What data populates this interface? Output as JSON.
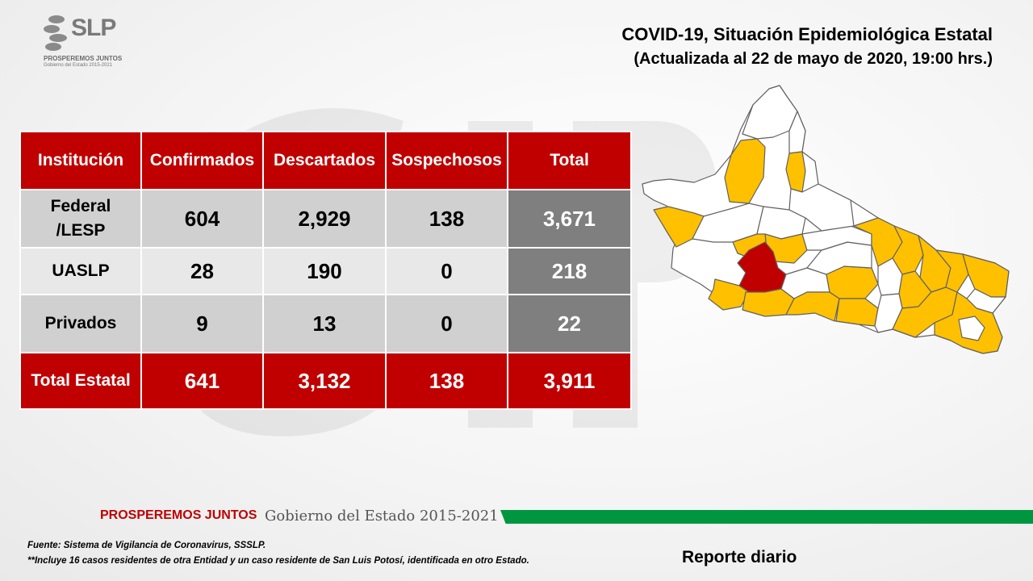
{
  "logo": {
    "brand": "SLP",
    "line1": "PROSPEREMOS JUNTOS",
    "line2": "Gobierno del Estado 2015-2021"
  },
  "header": {
    "title": "COVID-19, Situación Epidemiológica Estatal",
    "subtitle": "(Actualizada al 22 de mayo de 2020, 19:00 hrs.)"
  },
  "table": {
    "headers": [
      "Institución",
      "Confirmados",
      "Descartados",
      "Sospechosos",
      "Total"
    ],
    "rows": [
      {
        "institucion": "Federal\n/LESP",
        "confirmados": "604",
        "descartados": "2,929",
        "sospechosos": "138",
        "total": "3,671"
      },
      {
        "institucion": "UASLP",
        "confirmados": "28",
        "descartados": "190",
        "sospechosos": "0",
        "total": "218"
      },
      {
        "institucion": "Privados",
        "confirmados": "9",
        "descartados": "13",
        "sospechosos": "0",
        "total": "22"
      }
    ],
    "total_row": {
      "institucion": "Total Estatal",
      "confirmados": "641",
      "descartados": "3,132",
      "sospechosos": "138",
      "total": "3,911"
    }
  },
  "map": {
    "colors": {
      "no_cases": "#ffffff",
      "with_cases": "#ffc000",
      "highest": "#c00000",
      "border": "#606060"
    }
  },
  "footer": {
    "band_bold": "PROSPEREMOS JUNTOS",
    "band_light": "Gobierno del Estado 2015-2021",
    "source": "Fuente: Sistema de Vigilancia de Coronavirus, SSSLP.",
    "note": "**Incluye 16 casos residentes de otra Entidad y un caso residente de San Luis Potosí, identificada en otro Estado.",
    "report_label": "Reporte diario"
  },
  "colors": {
    "accent_red": "#c00000",
    "accent_green": "#00963f",
    "total_gray": "#7f7f7f"
  }
}
